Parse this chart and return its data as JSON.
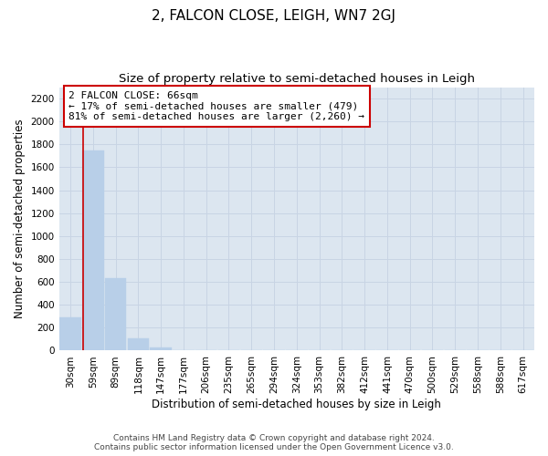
{
  "title": "2, FALCON CLOSE, LEIGH, WN7 2GJ",
  "subtitle": "Size of property relative to semi-detached houses in Leigh",
  "xlabel": "Distribution of semi-detached houses by size in Leigh",
  "ylabel": "Number of semi-detached properties",
  "categories": [
    "30sqm",
    "59sqm",
    "89sqm",
    "118sqm",
    "147sqm",
    "177sqm",
    "206sqm",
    "235sqm",
    "265sqm",
    "294sqm",
    "324sqm",
    "353sqm",
    "382sqm",
    "412sqm",
    "441sqm",
    "470sqm",
    "500sqm",
    "529sqm",
    "558sqm",
    "588sqm",
    "617sqm"
  ],
  "values": [
    290,
    1750,
    635,
    105,
    30,
    0,
    0,
    0,
    0,
    0,
    0,
    0,
    0,
    0,
    0,
    0,
    0,
    0,
    0,
    0,
    0
  ],
  "bar_color": "#b8cfe8",
  "bar_edge_color": "#b8cfe8",
  "grid_color": "#c8d4e4",
  "bg_color": "#dce6f0",
  "vline_x": 0.55,
  "vline_color": "#cc0000",
  "ylim": [
    0,
    2300
  ],
  "yticks": [
    0,
    200,
    400,
    600,
    800,
    1000,
    1200,
    1400,
    1600,
    1800,
    2000,
    2200
  ],
  "annotation_text": "2 FALCON CLOSE: 66sqm\n← 17% of semi-detached houses are smaller (479)\n81% of semi-detached houses are larger (2,260) →",
  "annotation_box_color": "#ffffff",
  "annotation_box_edge": "#cc0000",
  "footer_line1": "Contains HM Land Registry data © Crown copyright and database right 2024.",
  "footer_line2": "Contains public sector information licensed under the Open Government Licence v3.0.",
  "title_fontsize": 11,
  "subtitle_fontsize": 9.5,
  "axis_label_fontsize": 8.5,
  "tick_fontsize": 7.5,
  "annotation_fontsize": 8,
  "footer_fontsize": 6.5
}
